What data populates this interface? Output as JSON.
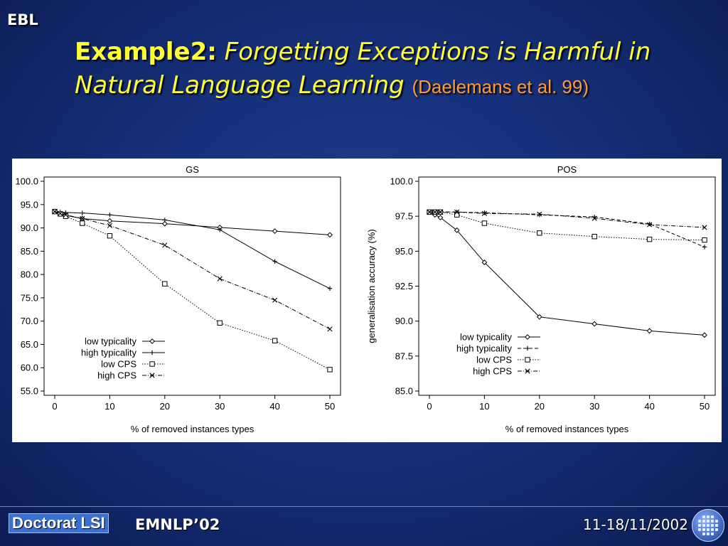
{
  "slide": {
    "corner_tag": "EBL",
    "title_bold": "Example2",
    "title_sep": ":",
    "title_italic": "Forgetting Exceptions is Harmful in Natural Language Learning",
    "title_cite": "(Daelemans et al. 99)",
    "footer_left": "Doctorat LSI",
    "footer_mid": "EMNLP’02",
    "footer_right": "11-18/11/2002"
  },
  "chart_data": [
    {
      "type": "line",
      "title": "GS",
      "xlabel": "% of removed instances types",
      "ylabel": "",
      "xlim": [
        0,
        50
      ],
      "ylim": [
        55,
        100
      ],
      "xticks": [
        "0",
        "10",
        "20",
        "30",
        "40",
        "50"
      ],
      "yticks": [
        "55.0",
        "60.0",
        "65.0",
        "70.0",
        "75.0",
        "80.0",
        "85.0",
        "90.0",
        "95.0",
        "100.0"
      ],
      "x": [
        0,
        1,
        2,
        5,
        10,
        20,
        30,
        40,
        50
      ],
      "series": [
        {
          "name": "low typicality",
          "marker": "diamond",
          "dash": "solid",
          "values": [
            93.5,
            93.0,
            92.7,
            92.0,
            91.5,
            90.9,
            90.1,
            89.3,
            88.5
          ]
        },
        {
          "name": "high typicality",
          "marker": "plus",
          "dash": "solid",
          "values": [
            93.5,
            93.4,
            93.3,
            93.2,
            92.8,
            91.7,
            89.6,
            82.8,
            77.0
          ]
        },
        {
          "name": "low CPS",
          "marker": "square",
          "dash": "dotted",
          "values": [
            93.5,
            93.0,
            92.5,
            91.0,
            88.3,
            78.0,
            69.6,
            65.8,
            59.6
          ]
        },
        {
          "name": "high CPS",
          "marker": "x",
          "dash": "dashdot",
          "values": [
            93.5,
            93.1,
            92.8,
            92.0,
            90.5,
            86.3,
            79.1,
            74.5,
            68.3
          ]
        }
      ],
      "legend": "bottom-left"
    },
    {
      "type": "line",
      "title": "POS",
      "xlabel": "% of removed instances types",
      "ylabel": "generalisation accuracy (%)",
      "xlim": [
        0,
        50
      ],
      "ylim": [
        85,
        100
      ],
      "xticks": [
        "0",
        "10",
        "20",
        "30",
        "40",
        "50"
      ],
      "yticks": [
        "85.0",
        "87.5",
        "90.0",
        "92.5",
        "95.0",
        "97.5",
        "100.0"
      ],
      "x": [
        0,
        1,
        2,
        5,
        10,
        20,
        30,
        40,
        50
      ],
      "series": [
        {
          "name": "low typicality",
          "marker": "diamond",
          "dash": "solid",
          "values": [
            97.8,
            97.6,
            97.4,
            96.5,
            94.2,
            90.3,
            89.8,
            89.3,
            89.0
          ]
        },
        {
          "name": "high typicality",
          "marker": "plus",
          "dash": "dashed",
          "values": [
            97.8,
            97.8,
            97.8,
            97.8,
            97.75,
            97.6,
            97.45,
            96.95,
            95.3
          ]
        },
        {
          "name": "low CPS",
          "marker": "square",
          "dash": "dotted",
          "values": [
            97.8,
            97.8,
            97.8,
            97.6,
            97.0,
            96.3,
            96.05,
            95.85,
            95.8
          ]
        },
        {
          "name": "high CPS",
          "marker": "x",
          "dash": "dashdot",
          "values": [
            97.8,
            97.8,
            97.8,
            97.8,
            97.7,
            97.65,
            97.35,
            96.9,
            96.7
          ]
        }
      ],
      "legend": "bottom-left"
    }
  ]
}
